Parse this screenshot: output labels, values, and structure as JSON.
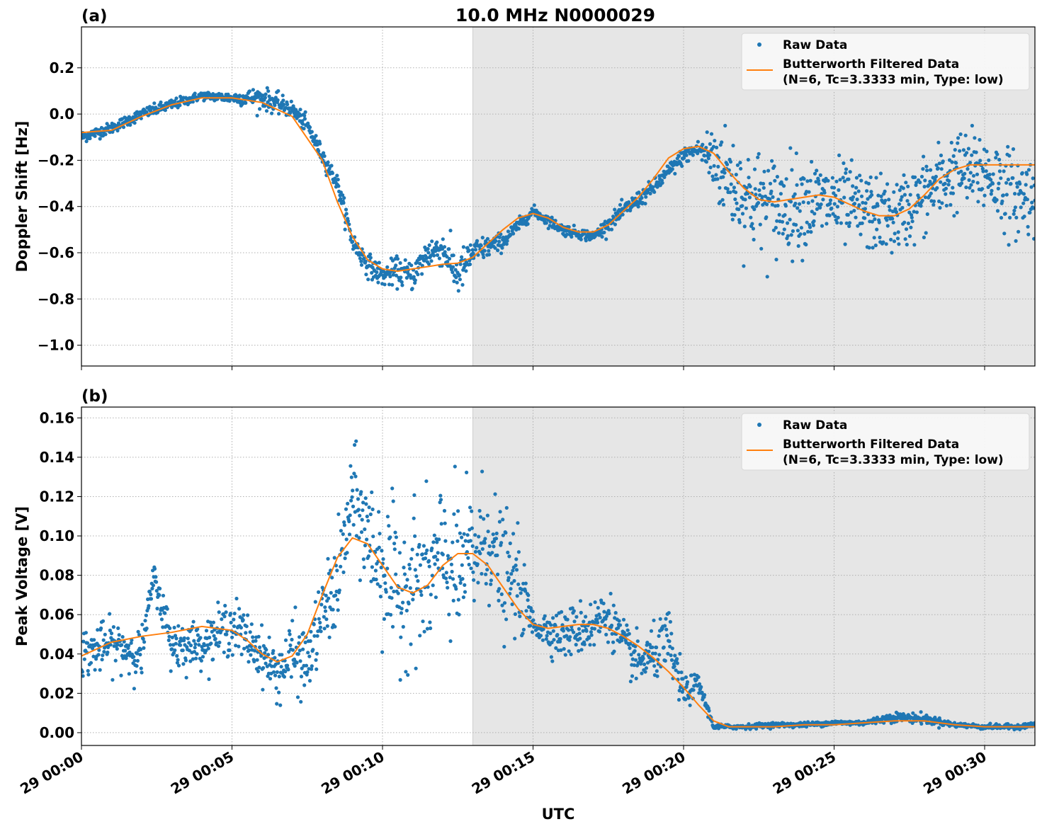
{
  "figure": {
    "title": "10.0 MHz N0000029",
    "xlabel": "UTC"
  },
  "chart_data": [
    {
      "type": "scatter",
      "panel_label": "(a)",
      "ylabel": "Doppler Shift [Hz]",
      "ylim": [
        -1.09,
        0.377
      ],
      "xlim_minutes": [
        0,
        31.67
      ],
      "x_ticks": [
        "29 00:00",
        "29 00:05",
        "29 00:10",
        "29 00:15",
        "29 00:20",
        "29 00:25",
        "29 00:30"
      ],
      "y_ticks": [
        "0.2",
        "0.0",
        "−0.2",
        "−0.4",
        "−0.6",
        "−0.8",
        "−1.0"
      ],
      "shaded_region_minutes": [
        13.0,
        31.67
      ],
      "grid": true,
      "legend": {
        "position": "top-right",
        "entries": [
          "Raw Data",
          "Butterworth Filtered Data\n(N=6, Tc=3.3333 min, Type: low)"
        ]
      },
      "series": [
        {
          "name": "Raw Data",
          "kind": "points",
          "color": "#1f77b4",
          "trend": {
            "x": [
              0,
              1,
              2,
              3,
              4,
              5,
              6,
              7,
              7.5,
              8,
              8.5,
              9,
              9.5,
              10,
              10.5,
              11,
              11.5,
              12,
              12.5,
              13,
              14,
              15,
              16,
              17,
              18,
              19,
              20,
              20.5,
              21,
              22,
              23,
              24,
              25,
              26,
              27,
              28,
              29,
              30,
              31,
              31.67
            ],
            "y": [
              -0.1,
              -0.06,
              0.0,
              0.04,
              0.08,
              0.07,
              0.07,
              0.02,
              -0.05,
              -0.18,
              -0.3,
              -0.55,
              -0.65,
              -0.7,
              -0.68,
              -0.7,
              -0.6,
              -0.58,
              -0.7,
              -0.6,
              -0.55,
              -0.42,
              -0.5,
              -0.53,
              -0.42,
              -0.32,
              -0.18,
              -0.15,
              -0.2,
              -0.35,
              -0.4,
              -0.38,
              -0.38,
              -0.42,
              -0.45,
              -0.35,
              -0.25,
              -0.25,
              -0.35,
              -0.35
            ]
          },
          "scatter_spread": [
            0.02,
            0.02,
            0.02,
            0.02,
            0.015,
            0.02,
            0.04,
            0.03,
            0.03,
            0.03,
            0.03,
            0.04,
            0.04,
            0.04,
            0.05,
            0.05,
            0.06,
            0.06,
            0.08,
            0.05,
            0.03,
            0.02,
            0.02,
            0.02,
            0.03,
            0.03,
            0.03,
            0.03,
            0.15,
            0.18,
            0.18,
            0.16,
            0.15,
            0.14,
            0.13,
            0.14,
            0.14,
            0.15,
            0.15,
            0.15
          ]
        },
        {
          "name": "Butterworth Filtered Data\n(N=6, Tc=3.3333 min, Type: low)",
          "kind": "line",
          "color": "#ff7f0e",
          "x": [
            0,
            1,
            2,
            3,
            4,
            5,
            6,
            7,
            8,
            8.5,
            9,
            9.5,
            10,
            10.5,
            11,
            11.5,
            12,
            12.5,
            13,
            13.5,
            14,
            14.5,
            15,
            15.5,
            16,
            16.5,
            17,
            17.5,
            18,
            18.5,
            19,
            19.5,
            20,
            20.5,
            21,
            21.5,
            22,
            22.5,
            23,
            23.5,
            24,
            24.5,
            25,
            25.5,
            26,
            26.5,
            27,
            27.5,
            28,
            28.5,
            29,
            29.5,
            30,
            30.5,
            31,
            31.67
          ],
          "y": [
            -0.08,
            -0.07,
            -0.01,
            0.04,
            0.07,
            0.07,
            0.05,
            -0.01,
            -0.2,
            -0.38,
            -0.53,
            -0.63,
            -0.67,
            -0.68,
            -0.67,
            -0.66,
            -0.65,
            -0.645,
            -0.62,
            -0.56,
            -0.5,
            -0.45,
            -0.43,
            -0.45,
            -0.49,
            -0.51,
            -0.51,
            -0.48,
            -0.42,
            -0.36,
            -0.28,
            -0.19,
            -0.15,
            -0.14,
            -0.17,
            -0.25,
            -0.32,
            -0.37,
            -0.38,
            -0.37,
            -0.36,
            -0.35,
            -0.36,
            -0.39,
            -0.42,
            -0.44,
            -0.44,
            -0.41,
            -0.35,
            -0.28,
            -0.24,
            -0.22,
            -0.22,
            -0.22,
            -0.22,
            -0.22
          ]
        }
      ]
    },
    {
      "type": "scatter",
      "panel_label": "(b)",
      "ylabel": "Peak Voltage [V]",
      "ylim": [
        -0.0065,
        0.1655
      ],
      "xlim_minutes": [
        0,
        31.67
      ],
      "x_ticks": [
        "29 00:00",
        "29 00:05",
        "29 00:10",
        "29 00:15",
        "29 00:20",
        "29 00:25",
        "29 00:30"
      ],
      "y_ticks": [
        "0.16",
        "0.14",
        "0.12",
        "0.10",
        "0.08",
        "0.06",
        "0.04",
        "0.02",
        "0.00"
      ],
      "shaded_region_minutes": [
        13.0,
        31.67
      ],
      "grid": true,
      "legend": {
        "position": "top-right",
        "entries": [
          "Raw Data",
          "Butterworth Filtered Data\n(N=6, Tc=3.3333 min, Type: low)"
        ]
      },
      "series": [
        {
          "name": "Raw Data",
          "kind": "points",
          "color": "#1f77b4",
          "trend": {
            "x": [
              0,
              1,
              2,
              2.4,
              3,
              4,
              5,
              6,
              6.5,
              7,
              7.5,
              8,
              8.5,
              9,
              9.5,
              10,
              10.5,
              11,
              11.5,
              12,
              12.5,
              13,
              13.5,
              14,
              14.5,
              15,
              16,
              17,
              17.5,
              18,
              18.5,
              19,
              19.5,
              20,
              20.5,
              21,
              22,
              23,
              24,
              25,
              26,
              27,
              28,
              29,
              30,
              31,
              31.67
            ],
            "y": [
              0.04,
              0.045,
              0.04,
              0.08,
              0.045,
              0.045,
              0.055,
              0.04,
              0.03,
              0.04,
              0.035,
              0.06,
              0.075,
              0.12,
              0.1,
              0.085,
              0.07,
              0.08,
              0.075,
              0.09,
              0.08,
              0.09,
              0.1,
              0.08,
              0.075,
              0.055,
              0.05,
              0.055,
              0.06,
              0.045,
              0.035,
              0.04,
              0.045,
              0.02,
              0.025,
              0.003,
              0.003,
              0.004,
              0.004,
              0.005,
              0.005,
              0.008,
              0.007,
              0.004,
              0.003,
              0.003,
              0.004
            ]
          },
          "scatter_spread": [
            0.01,
            0.01,
            0.01,
            0.005,
            0.012,
            0.008,
            0.012,
            0.01,
            0.012,
            0.015,
            0.015,
            0.015,
            0.02,
            0.02,
            0.025,
            0.03,
            0.03,
            0.03,
            0.03,
            0.03,
            0.03,
            0.03,
            0.025,
            0.025,
            0.02,
            0.006,
            0.01,
            0.012,
            0.01,
            0.01,
            0.01,
            0.01,
            0.015,
            0.007,
            0.004,
            0.001,
            0.001,
            0.001,
            0.001,
            0.001,
            0.001,
            0.002,
            0.002,
            0.001,
            0.001,
            0.001,
            0.001
          ]
        },
        {
          "name": "Butterworth Filtered Data\n(N=6, Tc=3.3333 min, Type: low)",
          "kind": "line",
          "color": "#ff7f0e",
          "x": [
            0,
            1,
            2,
            3,
            4,
            5,
            5.5,
            6,
            6.5,
            7,
            7.5,
            8,
            8.5,
            9,
            9.5,
            10,
            10.5,
            11,
            11.5,
            12,
            12.5,
            13,
            13.5,
            14,
            14.5,
            15,
            15.5,
            16,
            16.5,
            17,
            17.5,
            18,
            18.5,
            19,
            19.5,
            20,
            20.5,
            21,
            21.5,
            22,
            23,
            24,
            25,
            26,
            27,
            28,
            29,
            30,
            31,
            31.67
          ],
          "y": [
            0.039,
            0.046,
            0.049,
            0.051,
            0.054,
            0.052,
            0.047,
            0.04,
            0.036,
            0.039,
            0.05,
            0.07,
            0.089,
            0.099,
            0.096,
            0.085,
            0.074,
            0.071,
            0.075,
            0.085,
            0.091,
            0.091,
            0.085,
            0.074,
            0.063,
            0.055,
            0.053,
            0.054,
            0.055,
            0.055,
            0.053,
            0.049,
            0.044,
            0.038,
            0.031,
            0.023,
            0.014,
            0.006,
            0.003,
            0.003,
            0.003,
            0.004,
            0.004,
            0.005,
            0.006,
            0.006,
            0.004,
            0.003,
            0.003,
            0.003
          ]
        }
      ]
    }
  ]
}
